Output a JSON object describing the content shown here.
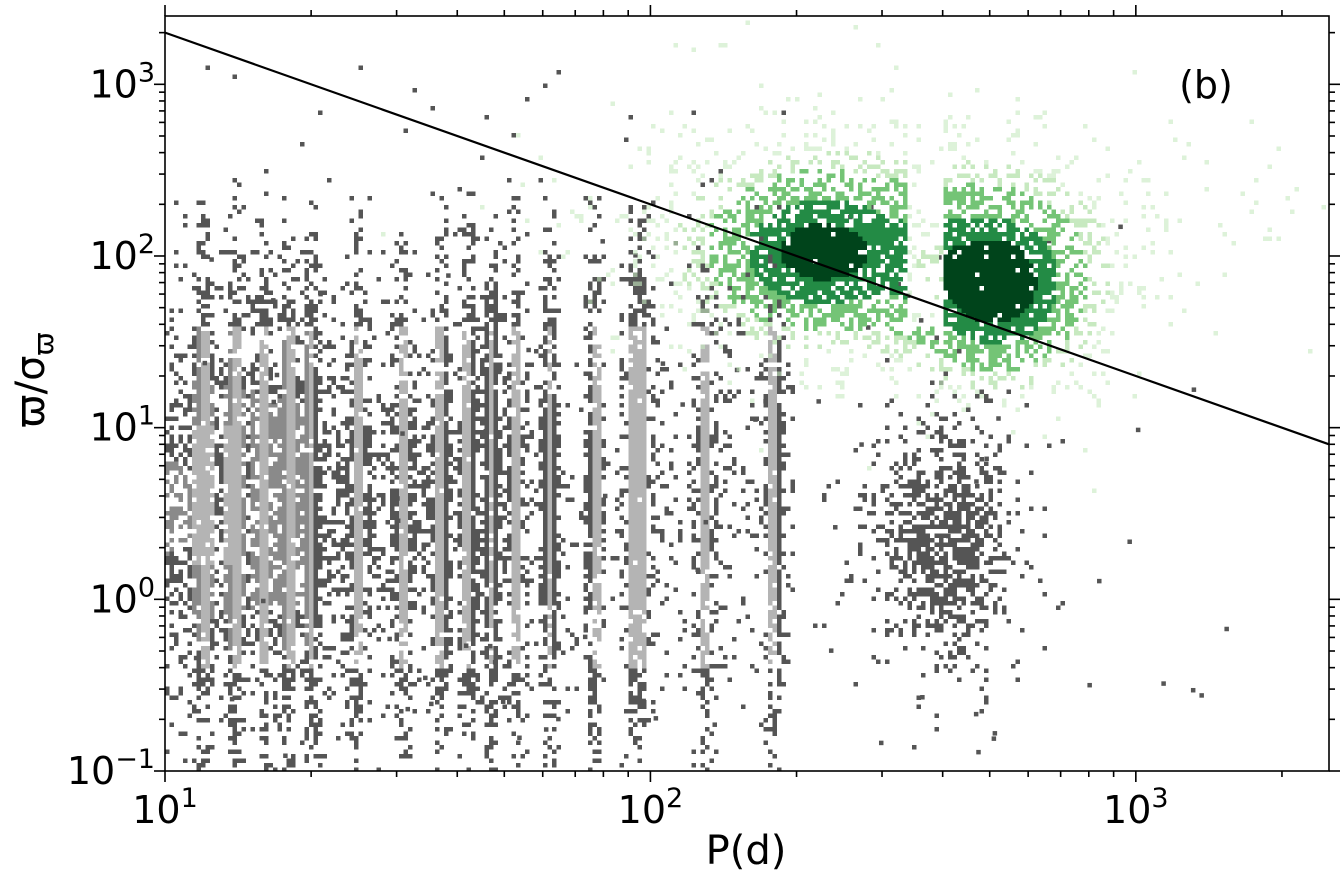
{
  "chart_data": {
    "type": "heatmap",
    "title": "",
    "panel_label": "(b)",
    "xlabel": "P(d)",
    "ylabel_base": "ϖ/σ",
    "ylabel_sub": "ϖ",
    "x_scale": "log",
    "y_scale": "log",
    "xlim": [
      10,
      2500
    ],
    "ylim": [
      0.1,
      2500
    ],
    "x_ticks": [
      {
        "value": 10,
        "base": "10",
        "exp": "1"
      },
      {
        "value": 100,
        "base": "10",
        "exp": "2"
      },
      {
        "value": 1000,
        "base": "10",
        "exp": "3"
      }
    ],
    "y_ticks": [
      {
        "value": 0.1,
        "base": "10",
        "exp": "−1"
      },
      {
        "value": 1,
        "base": "10",
        "exp": "0"
      },
      {
        "value": 10,
        "base": "10",
        "exp": "1"
      },
      {
        "value": 100,
        "base": "10",
        "exp": "2"
      },
      {
        "value": 1000,
        "base": "10",
        "exp": "3"
      }
    ],
    "grid": false,
    "series": [
      {
        "color_scale": "greys",
        "cmap": [
          "#555555",
          "#8a8a8a",
          "#b4b4b4"
        ],
        "x_range": [
          10,
          1500
        ],
        "y_range": [
          0.1,
          300
        ],
        "vertical_bands_P": [
          12,
          14,
          16,
          18,
          20,
          25,
          31,
          37,
          42,
          47,
          53,
          62,
          77,
          92,
          96,
          130,
          180
        ],
        "tail_center": [
          400,
          2.5
        ]
      },
      {
        "color_scale": "greens",
        "cmap": [
          "#c7e9c0",
          "#74c476",
          "#238b45",
          "#00441b"
        ],
        "x_range": [
          40,
          2000
        ],
        "y_range": [
          3,
          1500
        ],
        "clusters": [
          {
            "P": 220,
            "value": 100
          },
          {
            "P": 520,
            "value": 65
          }
        ],
        "vertex": [
          370,
          12
        ]
      }
    ],
    "reference_line": {
      "points": [
        [
          10,
          2000
        ],
        [
          2500,
          8
        ]
      ],
      "color": "#000000"
    },
    "colors": {
      "axis": "#000000",
      "background": "#ffffff"
    }
  }
}
